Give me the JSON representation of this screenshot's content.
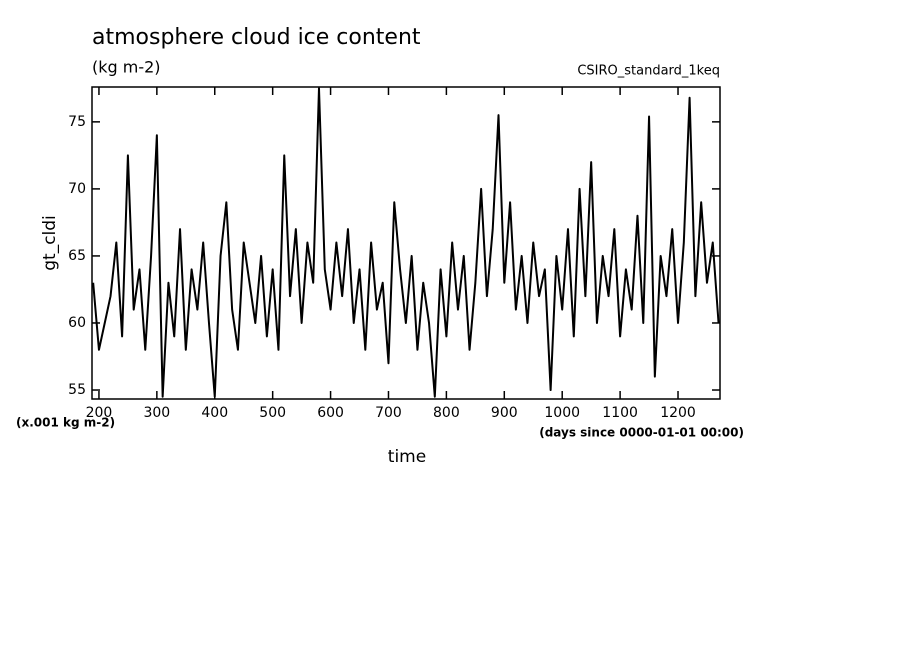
{
  "chart_data": {
    "type": "line",
    "title": "atmosphere cloud ice content",
    "subtitle": "(kg m-2)",
    "annotation": "CSIRO_standard_1keq",
    "y_label": "gt_cldi",
    "y_unit": "(x.001 kg m-2)",
    "x_unit": "(days since 0000-01-01 00:00)",
    "x_label": "time",
    "x": [
      190,
      200,
      210,
      220,
      230,
      240,
      250,
      260,
      270,
      280,
      290,
      300,
      310,
      320,
      330,
      340,
      350,
      360,
      370,
      380,
      390,
      400,
      410,
      420,
      430,
      440,
      450,
      460,
      470,
      480,
      490,
      500,
      510,
      520,
      530,
      540,
      550,
      560,
      570,
      580,
      590,
      600,
      610,
      620,
      630,
      640,
      650,
      660,
      670,
      680,
      690,
      700,
      710,
      720,
      730,
      740,
      750,
      760,
      770,
      780,
      790,
      800,
      810,
      820,
      830,
      840,
      850,
      860,
      870,
      880,
      890,
      900,
      910,
      920,
      930,
      940,
      950,
      960,
      970,
      980,
      990,
      1000,
      1010,
      1020,
      1030,
      1040,
      1050,
      1060,
      1070,
      1080,
      1090,
      1100,
      1110,
      1120,
      1130,
      1140,
      1150,
      1160,
      1170,
      1180,
      1190,
      1200,
      1210,
      1220,
      1230,
      1240,
      1250,
      1260,
      1270
    ],
    "series": [
      {
        "name": "gt_cldi",
        "color": "#000000",
        "values": [
          63,
          58,
          60,
          62,
          66,
          59,
          72.5,
          61,
          64,
          58,
          65,
          74,
          54.5,
          63,
          59,
          67,
          58,
          64,
          61,
          66,
          60,
          54.5,
          65,
          69,
          61,
          58,
          66,
          63,
          60,
          65,
          59,
          64,
          58,
          72.5,
          62,
          67,
          60,
          66,
          63,
          77.5,
          64,
          61,
          66,
          62,
          67,
          60,
          64,
          58,
          66,
          61,
          63,
          57,
          69,
          64,
          60,
          65,
          58,
          63,
          60,
          54.5,
          64,
          59,
          66,
          61,
          65,
          58,
          63,
          70,
          62,
          67,
          75.5,
          63,
          69,
          61,
          65,
          60,
          66,
          62,
          64,
          55,
          65,
          61,
          67,
          59,
          70,
          62,
          72,
          60,
          65,
          62,
          67,
          59,
          64,
          61,
          68,
          60,
          75.4,
          56,
          65,
          62,
          67,
          60,
          66,
          76.8,
          62,
          69,
          63,
          66,
          60
        ]
      }
    ],
    "xlim": [
      188,
      1272.5
    ],
    "ylim": [
      54.33,
      77.6
    ],
    "xticks": [
      200,
      300,
      400,
      500,
      600,
      700,
      800,
      900,
      1000,
      1100,
      1200
    ],
    "yticks": [
      55,
      60,
      65,
      70,
      75
    ]
  }
}
